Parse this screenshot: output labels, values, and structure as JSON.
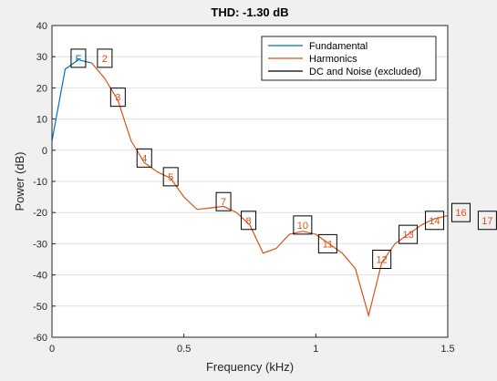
{
  "chart_data": {
    "type": "line",
    "title": "THD:  -1.30 dB",
    "xlabel": "Frequency (kHz)",
    "ylabel": "Power (dB)",
    "xlim": [
      0,
      1.5
    ],
    "ylim": [
      -60,
      40
    ],
    "x_ticks": [
      0,
      0.5,
      1,
      1.5
    ],
    "x_tick_labels": [
      "0",
      "0.5",
      "1",
      "1.5"
    ],
    "y_ticks": [
      -60,
      -50,
      -40,
      -30,
      -20,
      -10,
      0,
      10,
      20,
      30,
      40
    ],
    "y_tick_labels": [
      "-60",
      "-50",
      "-40",
      "-30",
      "-20",
      "-10",
      "0",
      "10",
      "20",
      "30",
      "40"
    ],
    "grid": "horizontal",
    "legend_position": "top-right",
    "series": [
      {
        "name": "Fundamental",
        "color": "#0072bd",
        "x": [
          0,
          0.05,
          0.1,
          0.15
        ],
        "y": [
          3,
          26,
          29,
          28
        ]
      },
      {
        "name": "Harmonics",
        "color": "#d95319",
        "x": [
          0.15,
          0.2,
          0.25,
          0.3,
          0.35,
          0.4,
          0.45,
          0.5,
          0.55,
          0.6,
          0.65,
          0.7,
          0.75,
          0.8,
          0.85,
          0.9,
          0.95,
          1.0,
          1.05,
          1.1,
          1.15,
          1.2,
          1.25,
          1.3,
          1.35,
          1.4,
          1.45,
          1.5
        ],
        "y": [
          28,
          23,
          16,
          3,
          -4,
          -7,
          -9,
          -15,
          -19,
          -18.5,
          -18,
          -20,
          -24,
          -33,
          -31.5,
          -27,
          -26,
          -27,
          -30,
          -33,
          -38,
          -53,
          -36,
          -30,
          -27,
          -24,
          -22,
          -21
        ]
      },
      {
        "name": "DC and Noise (excluded)",
        "color": "#000000",
        "x": [],
        "y": []
      }
    ],
    "markers": [
      {
        "label": "F",
        "x": 0.1,
        "y": 29.5,
        "color": "#0072bd"
      },
      {
        "label": "2",
        "x": 0.2,
        "y": 29.5,
        "color": "#d95319"
      },
      {
        "label": "3",
        "x": 0.25,
        "y": 17,
        "color": "#d95319"
      },
      {
        "label": "4",
        "x": 0.35,
        "y": -2.5,
        "color": "#d95319"
      },
      {
        "label": "5",
        "x": 0.45,
        "y": -8.5,
        "color": "#d95319"
      },
      {
        "label": "7",
        "x": 0.65,
        "y": -16.5,
        "color": "#d95319"
      },
      {
        "label": "8",
        "x": 0.745,
        "y": -22.5,
        "color": "#d95319"
      },
      {
        "label": "10",
        "x": 0.95,
        "y": -24,
        "color": "#d95319"
      },
      {
        "label": "11",
        "x": 1.045,
        "y": -30,
        "color": "#d95319"
      },
      {
        "label": "12",
        "x": 1.25,
        "y": -35,
        "color": "#d95319"
      },
      {
        "label": "13",
        "x": 1.35,
        "y": -27,
        "color": "#d95319"
      },
      {
        "label": "14",
        "x": 1.45,
        "y": -22.5,
        "color": "#d95319"
      },
      {
        "label": "16",
        "x": 1.55,
        "y": -20,
        "color": "#d95319"
      },
      {
        "label": "17",
        "x": 1.65,
        "y": -22.5,
        "color": "#d95319"
      }
    ]
  }
}
